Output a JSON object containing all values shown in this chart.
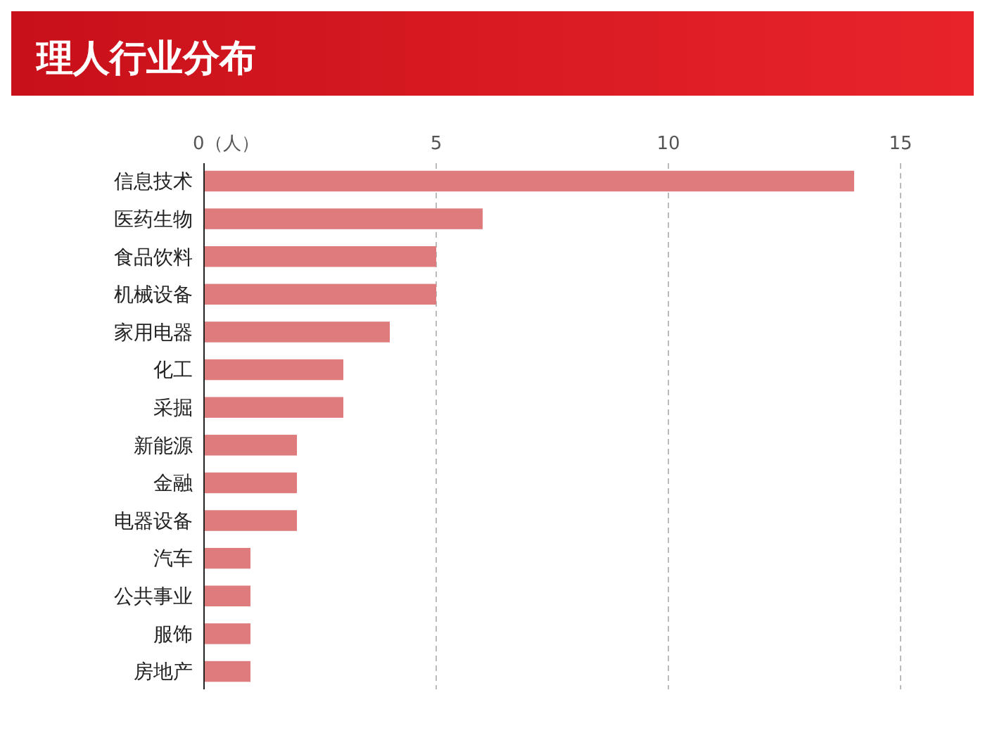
{
  "chart_data": {
    "type": "bar",
    "orientation": "horizontal",
    "title": "理人行业分布",
    "categories": [
      "信息技术",
      "医药生物",
      "食品饮料",
      "机械设备",
      "家用电器",
      "化工",
      "采掘",
      "新能源",
      "金融",
      "电器设备",
      "汽车",
      "公共事业",
      "服饰",
      "房地产"
    ],
    "values": [
      14,
      6,
      5,
      5,
      4,
      3,
      3,
      2,
      2,
      2,
      1,
      1,
      1,
      1
    ],
    "color": "#de7b7d",
    "xlim": [
      0,
      15
    ],
    "xticks": [
      {
        "value": 0,
        "label": "0（人）"
      },
      5,
      10,
      15
    ],
    "grid": "x"
  }
}
